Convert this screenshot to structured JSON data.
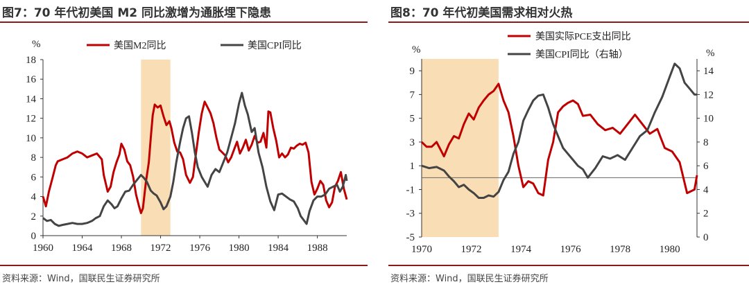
{
  "colors": {
    "red": "#C00000",
    "gray": "#444444",
    "highlight": "#F9DDB4",
    "rule": "#8B1A1A"
  },
  "chart_data": [
    {
      "type": "line",
      "title": "图7：70 年代初美国 M2 同比激增为通胀埋下隐患",
      "source": "资料来源：Wind，国联民生证券研究所",
      "ylabel": "%",
      "xlim": [
        1960,
        1991
      ],
      "ylim": [
        0,
        18
      ],
      "xticks": [
        1960,
        1964,
        1968,
        1972,
        1976,
        1980,
        1984,
        1988
      ],
      "yticks": [
        0,
        2,
        4,
        6,
        8,
        10,
        12,
        14,
        16,
        18
      ],
      "highlight": [
        1970,
        1973
      ],
      "legend": [
        "美国M2同比",
        "美国CPI同比"
      ],
      "series": [
        {
          "name": "美国M2同比",
          "color": "#C00000",
          "x": [
            1960,
            1960.3,
            1960.6,
            1961,
            1961.3,
            1961.5,
            1962,
            1962.5,
            1963,
            1963.5,
            1964,
            1964.5,
            1965,
            1965.5,
            1966,
            1966.2,
            1966.6,
            1966.9,
            1967.2,
            1967.5,
            1967.8,
            1968,
            1968.3,
            1968.6,
            1968.9,
            1969.2,
            1969.5,
            1969.8,
            1970,
            1970.2,
            1970.5,
            1970.8,
            1971,
            1971.2,
            1971.4,
            1971.7,
            1972,
            1972.3,
            1972.6,
            1972.9,
            1973.1,
            1973.4,
            1973.7,
            1974,
            1974.3,
            1974.6,
            1975,
            1975.3,
            1975.6,
            1975.9,
            1976.2,
            1976.5,
            1976.8,
            1977.1,
            1977.4,
            1977.7,
            1978,
            1978.3,
            1978.6,
            1978.9,
            1979.2,
            1979.5,
            1979.8,
            1980.1,
            1980.4,
            1980.7,
            1981,
            1981.3,
            1981.6,
            1981.9,
            1982.2,
            1982.5,
            1982.8,
            1983,
            1983.2,
            1983.5,
            1983.8,
            1984.1,
            1984.4,
            1984.7,
            1985,
            1985.3,
            1985.6,
            1985.9,
            1986.2,
            1986.5,
            1986.8,
            1987.1,
            1987.4,
            1987.7,
            1988,
            1988.3,
            1988.6,
            1988.9,
            1989.2,
            1989.5,
            1989.8,
            1990.1,
            1990.4,
            1990.7,
            1991
          ],
          "y": [
            4,
            3,
            4.5,
            6,
            7.2,
            7.6,
            7.8,
            8.0,
            8.4,
            8.6,
            8.4,
            8.0,
            8.2,
            8.4,
            7.8,
            6.2,
            4.5,
            5.0,
            6.5,
            7.5,
            8.3,
            9.4,
            8.8,
            7.6,
            7.2,
            6.0,
            4.2,
            3.0,
            2.3,
            2.8,
            5.5,
            7.5,
            10.0,
            12.3,
            13.4,
            13.1,
            13.3,
            12.2,
            11.3,
            11.7,
            11.0,
            9.5,
            8.6,
            8.5,
            7.8,
            6.2,
            5.4,
            6.0,
            8.3,
            10.6,
            12.5,
            13.7,
            13.1,
            12.5,
            11.5,
            10.0,
            8.8,
            8.5,
            8.2,
            7.5,
            8.0,
            8.8,
            9.6,
            8.4,
            9.0,
            9.8,
            8.7,
            9.3,
            10.2,
            9.5,
            9.6,
            10.5,
            9.0,
            12.7,
            12.6,
            11.0,
            9.7,
            8.0,
            8.4,
            8.0,
            8.3,
            9.0,
            8.9,
            9.2,
            9.4,
            9.3,
            9.5,
            8.5,
            5.5,
            4.2,
            4.8,
            5.6,
            5.2,
            3.6,
            2.9,
            3.4,
            5.0,
            5.6,
            6.5,
            4.8,
            3.7
          ]
        },
        {
          "name": "美国CPI同比",
          "color": "#444444",
          "x": [
            1960,
            1960.4,
            1960.8,
            1961.2,
            1961.6,
            1962,
            1962.5,
            1963,
            1963.5,
            1964,
            1964.5,
            1965,
            1965.4,
            1965.8,
            1966.2,
            1966.6,
            1967,
            1967.3,
            1967.6,
            1968,
            1968.4,
            1968.8,
            1969.2,
            1969.6,
            1970,
            1970.3,
            1970.6,
            1971,
            1971.3,
            1971.6,
            1972,
            1972.3,
            1972.6,
            1973,
            1973.3,
            1973.6,
            1974,
            1974.3,
            1974.6,
            1974.9,
            1975.2,
            1975.5,
            1975.8,
            1976.2,
            1976.5,
            1976.8,
            1977.2,
            1977.6,
            1978,
            1978.4,
            1978.8,
            1979.2,
            1979.6,
            1980,
            1980.3,
            1980.6,
            1980.9,
            1981.3,
            1981.6,
            1982,
            1982.4,
            1982.8,
            1983.2,
            1983.6,
            1984,
            1984.4,
            1984.8,
            1985.2,
            1985.6,
            1986,
            1986.3,
            1986.6,
            1986.9,
            1987.2,
            1987.6,
            1988,
            1988.4,
            1988.8,
            1989.2,
            1989.6,
            1990,
            1990.3,
            1990.6,
            1990.9,
            1991
          ],
          "y": [
            1.8,
            1.5,
            1.6,
            1.2,
            1.0,
            1.1,
            1.2,
            1.3,
            1.2,
            1.2,
            1.3,
            1.5,
            1.8,
            2.0,
            3.0,
            3.6,
            3.2,
            2.8,
            3.0,
            3.8,
            4.5,
            4.6,
            5.2,
            5.7,
            6.2,
            5.9,
            5.5,
            4.6,
            4.3,
            4.1,
            3.4,
            2.7,
            3.0,
            4.0,
            5.5,
            7.5,
            9.6,
            11.0,
            12.0,
            12.2,
            10.5,
            8.5,
            7.0,
            6.0,
            5.5,
            5.0,
            6.2,
            6.8,
            6.5,
            7.5,
            8.5,
            10.0,
            11.5,
            13.5,
            14.6,
            13.3,
            12.4,
            10.6,
            11.0,
            8.5,
            7.0,
            5.0,
            3.5,
            2.6,
            4.2,
            4.3,
            4.0,
            3.7,
            3.5,
            2.8,
            2.0,
            1.6,
            1.2,
            2.5,
            3.6,
            4.0,
            4.0,
            4.2,
            4.8,
            5.0,
            5.2,
            4.5,
            5.0,
            6.2,
            5.6
          ]
        }
      ]
    },
    {
      "type": "line",
      "title": "图8：70 年代初美国需求相对火热",
      "source": "资料来源：Wind，国联民生证券研究所",
      "ylabel": "%",
      "y2label": "%",
      "xlim": [
        1970,
        1981.1
      ],
      "ylim": [
        -5,
        10
      ],
      "y2lim": [
        0,
        15
      ],
      "xticks": [
        1970,
        1972,
        1974,
        1976,
        1978,
        1980
      ],
      "yticks": [
        -5,
        -3,
        -1,
        1,
        3,
        5,
        7,
        9
      ],
      "y2ticks": [
        0,
        2,
        4,
        6,
        8,
        10,
        12,
        14
      ],
      "highlight": [
        1970,
        1973.1
      ],
      "legend": [
        "美国实际PCE支出同比",
        "美国CPI同比（右轴）"
      ],
      "series": [
        {
          "name": "美国实际PCE支出同比",
          "color": "#C00000",
          "axis": "left",
          "x": [
            1970,
            1970.2,
            1970.4,
            1970.6,
            1970.9,
            1971.1,
            1971.3,
            1971.5,
            1971.7,
            1971.9,
            1972.1,
            1972.3,
            1972.5,
            1972.7,
            1972.9,
            1973.1,
            1973.3,
            1973.5,
            1973.7,
            1973.9,
            1974.1,
            1974.3,
            1974.5,
            1974.7,
            1974.9,
            1975.1,
            1975.3,
            1975.5,
            1975.7,
            1975.9,
            1976.1,
            1976.3,
            1976.5,
            1976.8,
            1977.1,
            1977.4,
            1977.7,
            1978,
            1978.3,
            1978.6,
            1978.9,
            1979.2,
            1979.5,
            1979.8,
            1980.1,
            1980.4,
            1980.7,
            1981,
            1981.1
          ],
          "y": [
            3.0,
            2.6,
            2.6,
            3.0,
            1.8,
            2.8,
            3.5,
            3.3,
            4.5,
            5.4,
            4.9,
            5.9,
            6.5,
            7.0,
            7.3,
            7.9,
            6.5,
            5.5,
            3.5,
            1.0,
            -0.8,
            -0.3,
            -0.5,
            -1.3,
            -1.5,
            1.5,
            3.0,
            5.5,
            6.0,
            6.3,
            6.5,
            6.2,
            5.2,
            5.3,
            4.5,
            4.0,
            4.2,
            3.7,
            4.5,
            5.3,
            4.5,
            3.7,
            4.1,
            2.5,
            2.2,
            1.3,
            -1.3,
            -1.0,
            0.2
          ]
        },
        {
          "name": "美国CPI同比（右轴）",
          "color": "#444444",
          "axis": "right",
          "x": [
            1970,
            1970.3,
            1970.6,
            1970.9,
            1971.1,
            1971.3,
            1971.5,
            1971.7,
            1971.9,
            1972.1,
            1972.3,
            1972.5,
            1972.7,
            1972.9,
            1973.1,
            1973.3,
            1973.5,
            1973.7,
            1973.9,
            1974.1,
            1974.3,
            1974.5,
            1974.7,
            1974.9,
            1975.1,
            1975.3,
            1975.5,
            1975.7,
            1975.9,
            1976.1,
            1976.3,
            1976.5,
            1976.7,
            1977,
            1977.3,
            1977.6,
            1977.9,
            1978.2,
            1978.5,
            1978.8,
            1979.1,
            1979.4,
            1979.7,
            1980,
            1980.2,
            1980.4,
            1980.6,
            1980.8,
            1981,
            1981.1
          ],
          "y": [
            6.0,
            5.8,
            5.9,
            5.6,
            5.1,
            4.7,
            4.2,
            4.4,
            4.0,
            3.7,
            3.3,
            3.3,
            3.5,
            3.4,
            3.8,
            4.8,
            5.5,
            7.0,
            8.0,
            9.8,
            10.7,
            11.5,
            11.9,
            12.0,
            10.9,
            9.5,
            8.5,
            7.5,
            7.0,
            6.5,
            6.0,
            5.7,
            5.0,
            5.8,
            6.8,
            6.6,
            6.9,
            6.5,
            7.5,
            8.5,
            9.0,
            10.5,
            11.8,
            13.5,
            14.6,
            14.2,
            13.0,
            12.5,
            12.0,
            12.0
          ]
        }
      ]
    }
  ]
}
